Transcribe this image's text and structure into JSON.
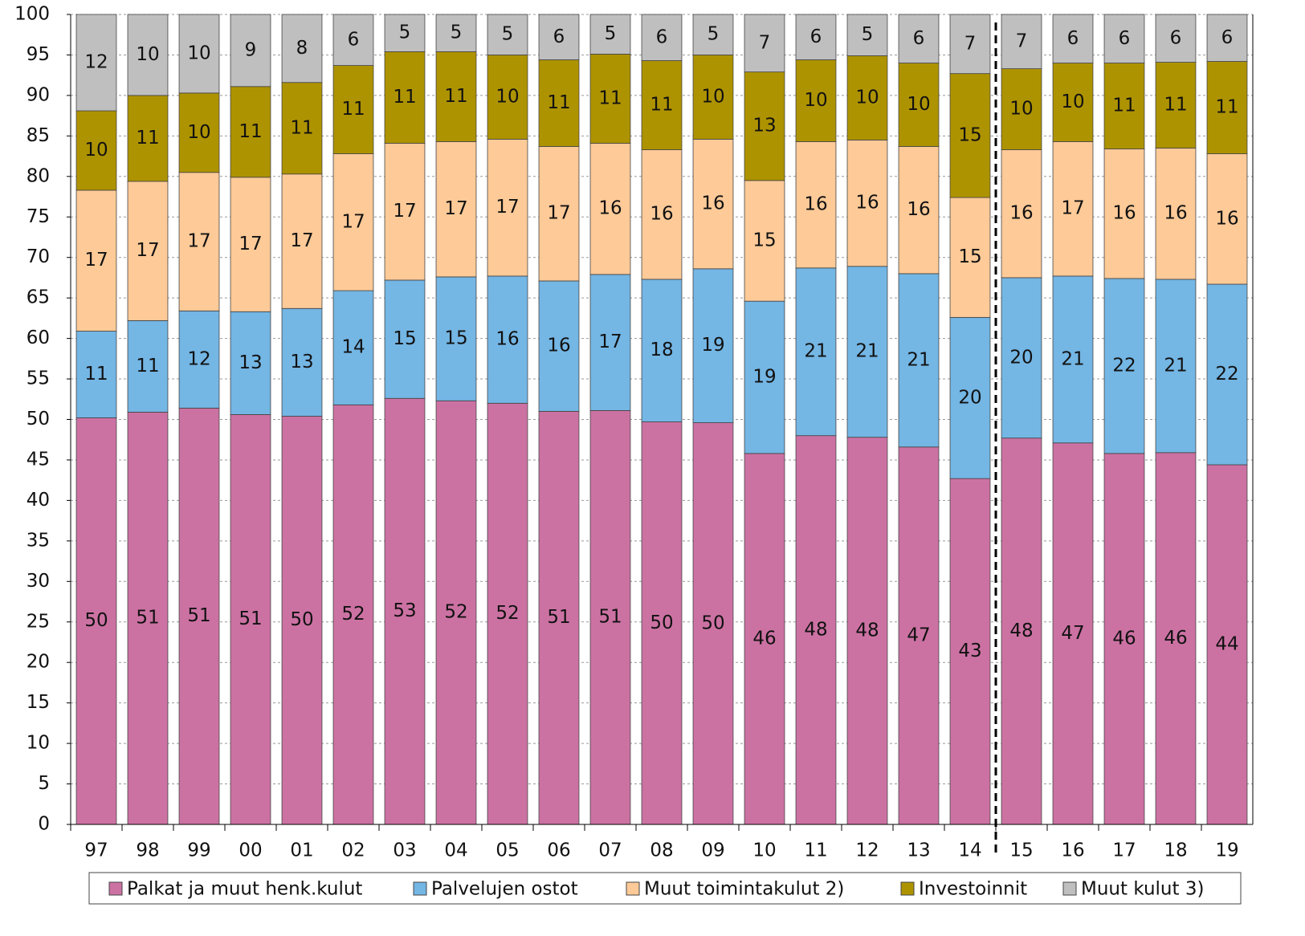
{
  "chart_data": {
    "type": "stacked_bar",
    "categories": [
      "97",
      "98",
      "99",
      "00",
      "01",
      "02",
      "03",
      "04",
      "05",
      "06",
      "07",
      "08",
      "09",
      "10",
      "11",
      "12",
      "13",
      "14",
      "15",
      "16",
      "17",
      "18",
      "19"
    ],
    "series": [
      {
        "name": "Palkat ja muut henk.kulut",
        "color": "#cc72a3",
        "values": [
          50.2,
          50.9,
          51.4,
          50.6,
          50.4,
          51.8,
          52.6,
          52.3,
          52.0,
          51.0,
          51.1,
          49.7,
          49.6,
          45.8,
          48.0,
          47.8,
          46.6,
          42.7,
          47.7,
          47.1,
          45.8,
          45.9,
          44.4
        ],
        "value_labels": [
          "50",
          "51",
          "51",
          "51",
          "50",
          "52",
          "53",
          "52",
          "52",
          "51",
          "51",
          "50",
          "50",
          "46",
          "48",
          "48",
          "47",
          "43",
          "48",
          "47",
          "46",
          "46",
          "44"
        ]
      },
      {
        "name": "Palvelujen ostot",
        "color": "#74b6e4",
        "values": [
          10.7,
          11.3,
          12.0,
          12.7,
          13.3,
          14.1,
          14.6,
          15.3,
          15.7,
          16.1,
          16.8,
          17.6,
          19.0,
          18.8,
          20.7,
          21.1,
          21.4,
          19.9,
          19.8,
          20.6,
          21.6,
          21.4,
          22.3
        ],
        "value_labels": [
          "11",
          "11",
          "12",
          "13",
          "13",
          "14",
          "15",
          "15",
          "16",
          "16",
          "17",
          "18",
          "19",
          "19",
          "21",
          "21",
          "21",
          "20",
          "20",
          "21",
          "22",
          "21",
          "22"
        ]
      },
      {
        "name": "Muut toimintakulut 2)",
        "color": "#fdca98",
        "values": [
          17.4,
          17.2,
          17.1,
          16.6,
          16.6,
          16.9,
          16.9,
          16.7,
          16.9,
          16.6,
          16.2,
          16.0,
          16.0,
          14.9,
          15.6,
          15.6,
          15.7,
          14.8,
          15.8,
          16.6,
          16.0,
          16.2,
          16.1
        ],
        "value_labels": [
          "17",
          "17",
          "17",
          "17",
          "17",
          "17",
          "17",
          "17",
          "17",
          "17",
          "16",
          "16",
          "16",
          "15",
          "16",
          "16",
          "16",
          "15",
          "16",
          "17",
          "16",
          "16",
          "16"
        ]
      },
      {
        "name": "Investoinnit",
        "color": "#ae9300",
        "values": [
          9.8,
          10.6,
          9.8,
          11.2,
          11.3,
          10.9,
          11.3,
          11.1,
          10.4,
          10.7,
          11.0,
          11.0,
          10.4,
          13.4,
          10.1,
          10.4,
          10.3,
          15.3,
          10.0,
          9.7,
          10.6,
          10.6,
          11.4
        ],
        "value_labels": [
          "10",
          "11",
          "10",
          "11",
          "11",
          "11",
          "11",
          "11",
          "10",
          "11",
          "11",
          "11",
          "10",
          "13",
          "10",
          "10",
          "10",
          "15",
          "10",
          "10",
          "11",
          "11",
          "11"
        ]
      },
      {
        "name": "Muut kulut 3)",
        "color": "#bfbfbf",
        "values": [
          11.9,
          10.0,
          9.7,
          8.9,
          8.4,
          6.3,
          4.6,
          4.6,
          5.0,
          5.6,
          4.9,
          5.7,
          5.0,
          7.1,
          5.6,
          5.1,
          6.0,
          7.3,
          6.7,
          6.0,
          6.0,
          5.9,
          5.8
        ],
        "value_labels": [
          "12",
          "10",
          "10",
          "9",
          "8",
          "6",
          "5",
          "5",
          "5",
          "6",
          "5",
          "6",
          "5",
          "7",
          "6",
          "5",
          "6",
          "7",
          "7",
          "6",
          "6",
          "6",
          "6"
        ]
      }
    ],
    "ylim": [
      0,
      100
    ],
    "yticks": [
      0,
      5,
      10,
      15,
      20,
      25,
      30,
      35,
      40,
      45,
      50,
      55,
      60,
      65,
      70,
      75,
      80,
      85,
      90,
      95,
      100
    ],
    "grid": true
  }
}
